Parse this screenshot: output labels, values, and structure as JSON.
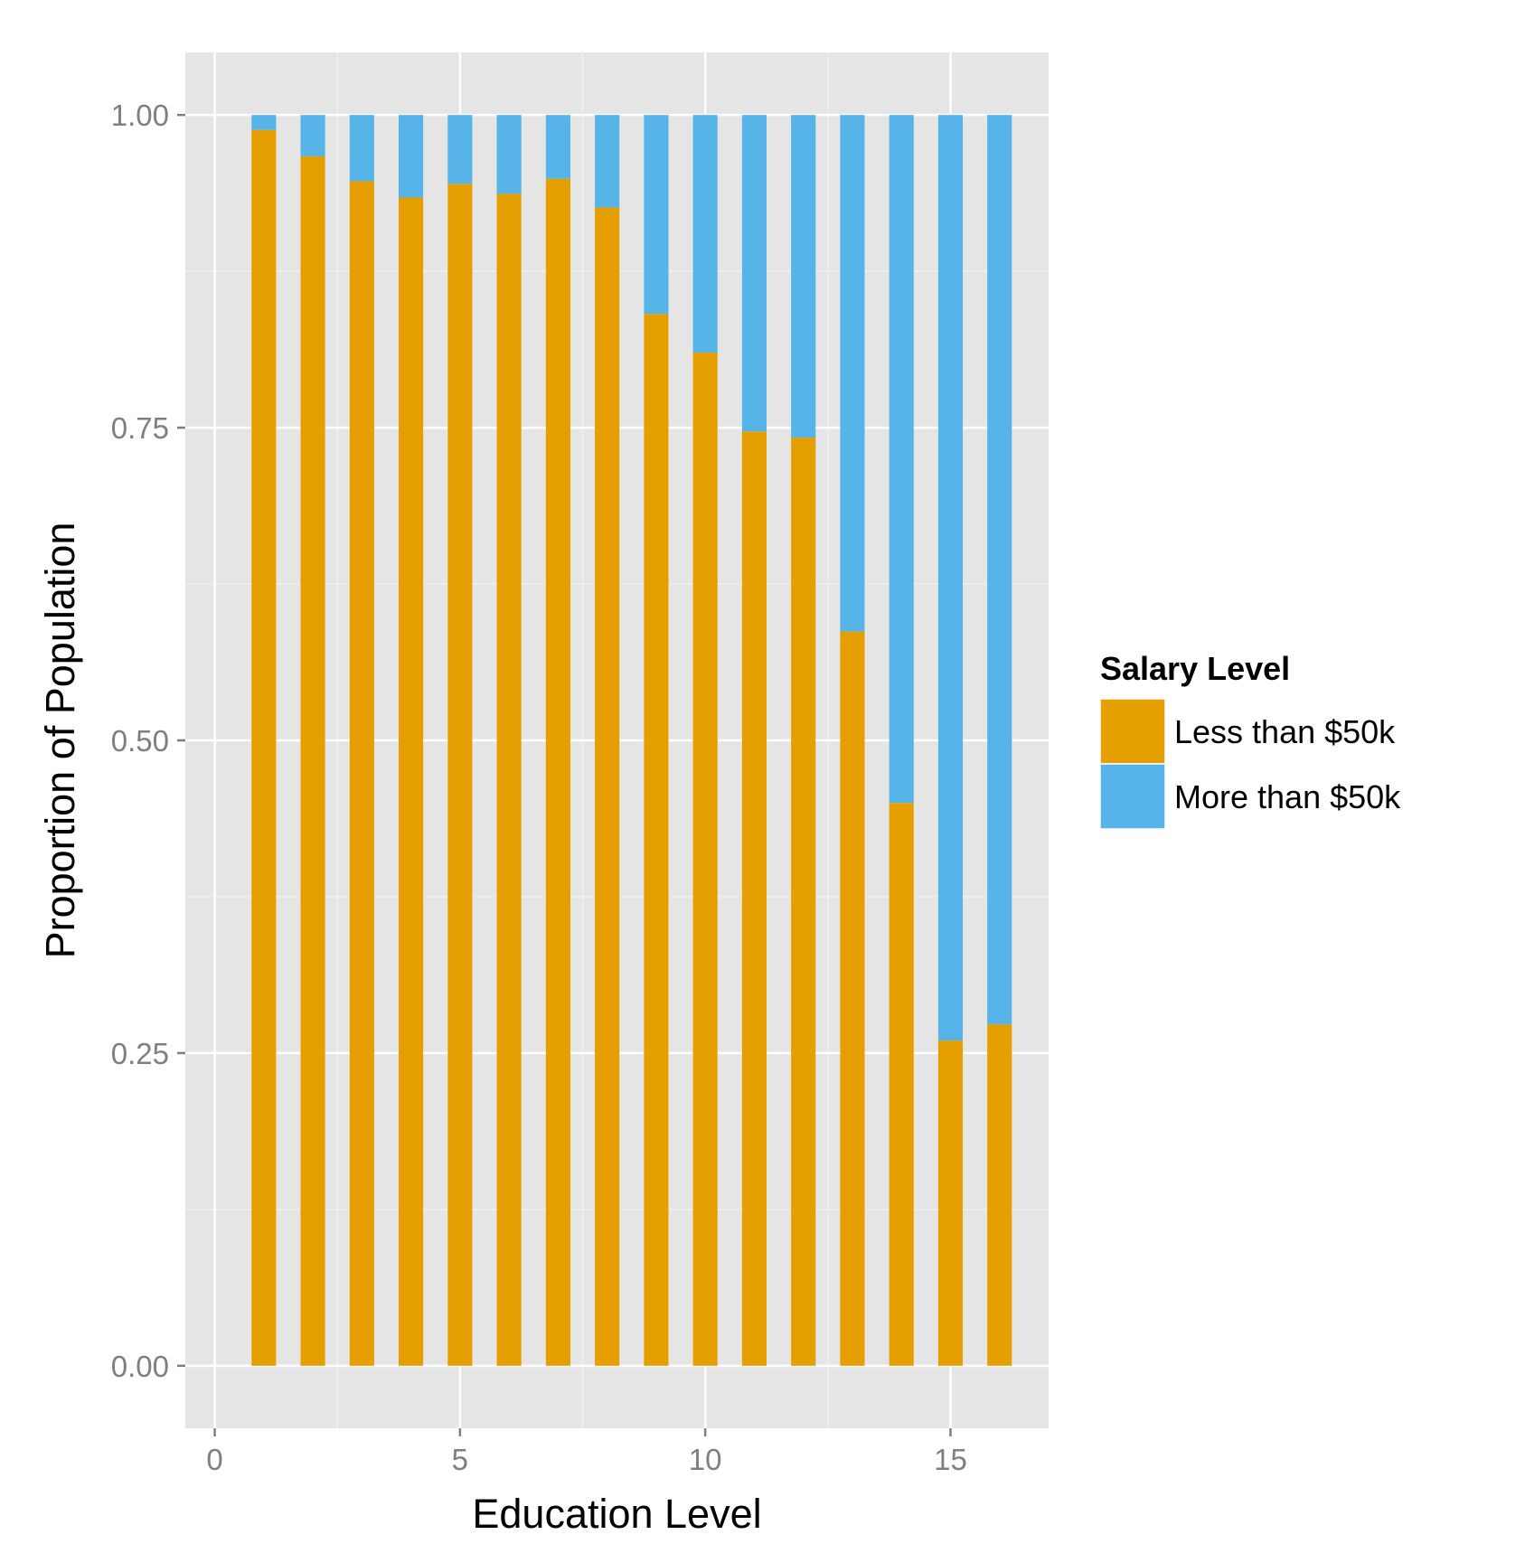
{
  "chart_data": {
    "type": "bar",
    "stacked": true,
    "title": "",
    "xlabel": "Education Level",
    "ylabel": "Proportion of Population",
    "x": [
      1,
      2,
      3,
      4,
      5,
      6,
      7,
      8,
      9,
      10,
      11,
      12,
      13,
      14,
      15,
      16
    ],
    "xlim": [
      -0.6,
      17.0
    ],
    "ylim": [
      -0.05,
      1.05
    ],
    "x_ticks": [
      0,
      5,
      10,
      15
    ],
    "x_tick_labels": [
      "0",
      "5",
      "10",
      "15"
    ],
    "y_ticks": [
      0,
      0.25,
      0.5,
      0.75,
      1.0
    ],
    "y_tick_labels": [
      "0.00",
      "0.25",
      "0.50",
      "0.75",
      "1.00"
    ],
    "bar_width": 0.5,
    "grid": true,
    "background": "#E5E5E5",
    "series": [
      {
        "name": "Less than $50k",
        "color": "#E69F00",
        "values": [
          0.988,
          0.967,
          0.947,
          0.934,
          0.945,
          0.937,
          0.949,
          0.926,
          0.841,
          0.81,
          0.747,
          0.742,
          0.587,
          0.45,
          0.26,
          0.273
        ]
      },
      {
        "name": "More than $50k",
        "color": "#56B4E9",
        "values": [
          0.012,
          0.033,
          0.053,
          0.066,
          0.055,
          0.063,
          0.051,
          0.074,
          0.159,
          0.19,
          0.253,
          0.258,
          0.413,
          0.55,
          0.74,
          0.727
        ]
      }
    ],
    "legend": {
      "title": "Salary Level",
      "position": "right",
      "entries": [
        "Less than $50k",
        "More than $50k"
      ]
    }
  }
}
